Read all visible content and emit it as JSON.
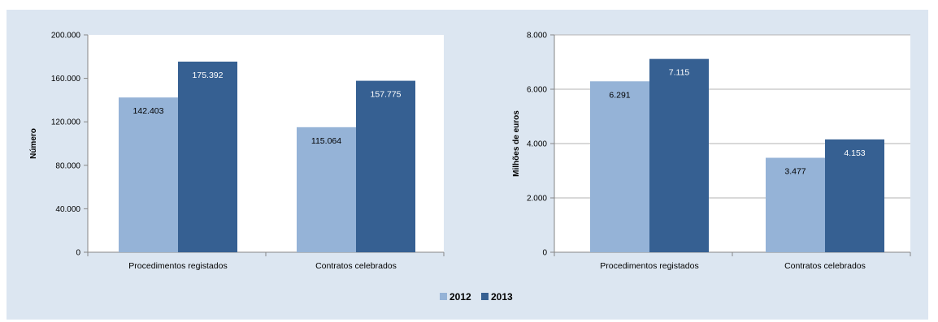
{
  "colors": {
    "panel": "#dce6f1",
    "y2012": "#95b3d7",
    "y2013": "#366092",
    "grid": "#b3b3b3"
  },
  "legend": [
    {
      "label": "2012",
      "color": "#95b3d7"
    },
    {
      "label": "2013",
      "color": "#366092"
    }
  ],
  "chart_data": [
    {
      "type": "bar",
      "categories": [
        "Procedimentos registados",
        "Contratos celebrados"
      ],
      "series": [
        {
          "name": "2012",
          "values": [
            142403,
            115064
          ],
          "labels": [
            "142.403",
            "115.064"
          ]
        },
        {
          "name": "2013",
          "values": [
            175392,
            157775
          ],
          "labels": [
            "175.392",
            "157.775"
          ]
        }
      ],
      "ylabel": "Número",
      "ylim": [
        0,
        200000
      ],
      "yticks": [
        0,
        40000,
        80000,
        120000,
        160000,
        200000
      ],
      "ytick_labels": [
        "0",
        "40.000",
        "80.000",
        "120.000",
        "160.000",
        "200.000"
      ],
      "grid": false
    },
    {
      "type": "bar",
      "categories": [
        "Procedimentos registados",
        "Contratos celebrados"
      ],
      "series": [
        {
          "name": "2012",
          "values": [
            6291,
            3477
          ],
          "labels": [
            "6.291",
            "3.477"
          ]
        },
        {
          "name": "2013",
          "values": [
            7115,
            4153
          ],
          "labels": [
            "7.115",
            "4.153"
          ]
        }
      ],
      "ylabel": "Milhões de euros",
      "ylim": [
        0,
        8000
      ],
      "yticks": [
        0,
        2000,
        4000,
        6000,
        8000
      ],
      "ytick_labels": [
        "0",
        "2.000",
        "4.000",
        "6.000",
        "8.000"
      ],
      "grid": true
    }
  ]
}
